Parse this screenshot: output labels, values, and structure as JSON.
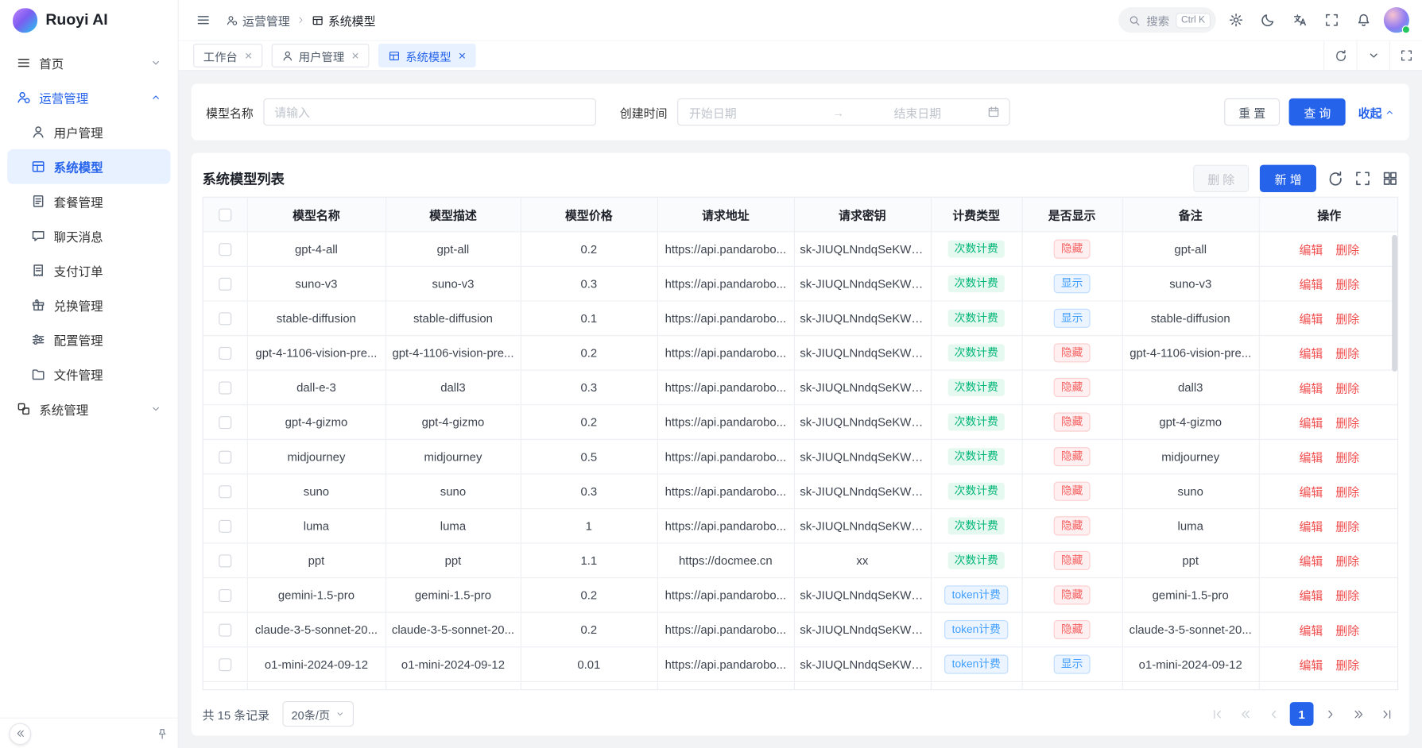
{
  "app": {
    "logo_text": "Ruoyi AI"
  },
  "colors": {
    "primary": "#2563eb",
    "count_billing": "#00b578",
    "token_billing": "#409eff",
    "hidden_badge": "#f56060",
    "shown_badge": "#409eff",
    "action_link": "#f04c4c"
  },
  "topbar": {
    "breadcrumb": [
      {
        "label": "运营管理",
        "icon": "operations"
      },
      {
        "label": "系统模型",
        "icon": "grid"
      }
    ],
    "search": {
      "placeholder": "搜索",
      "shortcut": "Ctrl K"
    }
  },
  "sidebar": {
    "home": {
      "label": "首页"
    },
    "operations": {
      "label": "运营管理"
    },
    "system": {
      "label": "系统管理"
    },
    "operations_children": [
      {
        "key": "users",
        "label": "用户管理",
        "icon": "user",
        "active": false
      },
      {
        "key": "models",
        "label": "系统模型",
        "icon": "grid",
        "active": true
      },
      {
        "key": "packages",
        "label": "套餐管理",
        "icon": "doc",
        "active": false
      },
      {
        "key": "chat-messages",
        "label": "聊天消息",
        "icon": "chat",
        "active": false
      },
      {
        "key": "payment-orders",
        "label": "支付订单",
        "icon": "receipt",
        "active": false
      },
      {
        "key": "redeem",
        "label": "兑换管理",
        "icon": "gift",
        "active": false
      },
      {
        "key": "config",
        "label": "配置管理",
        "icon": "config",
        "active": false
      },
      {
        "key": "files",
        "label": "文件管理",
        "icon": "folder",
        "active": false
      }
    ]
  },
  "tabs": [
    {
      "key": "workbench",
      "label": "工作台",
      "icon": "",
      "active": false
    },
    {
      "key": "users",
      "label": "用户管理",
      "icon": "user",
      "active": false
    },
    {
      "key": "models",
      "label": "系统模型",
      "icon": "grid",
      "active": true
    }
  ],
  "filter": {
    "model_name_label": "模型名称",
    "model_name_placeholder": "请输入",
    "create_time_label": "创建时间",
    "start_date_placeholder": "开始日期",
    "end_date_placeholder": "结束日期",
    "reset_label": "重 置",
    "query_label": "查 询",
    "collapse_label": "收起"
  },
  "panel": {
    "title": "系统模型列表",
    "delete_label": "删 除",
    "add_label": "新 增"
  },
  "table": {
    "columns": [
      "模型名称",
      "模型描述",
      "模型价格",
      "请求地址",
      "请求密钥",
      "计费类型",
      "是否显示",
      "备注",
      "操作"
    ],
    "edit_label": "编辑",
    "delete_label": "删除",
    "rows": [
      {
        "name": "gpt-4-all",
        "desc": "gpt-all",
        "price": "0.2",
        "url": "https://api.pandarobo...",
        "key": "sk-JIUQLNndqSeKWU...",
        "billing": "次数计费",
        "billing_type": "count",
        "visible": "隐藏",
        "visible_type": "hidden",
        "remark": "gpt-all"
      },
      {
        "name": "suno-v3",
        "desc": "suno-v3",
        "price": "0.3",
        "url": "https://api.pandarobo...",
        "key": "sk-JIUQLNndqSeKWU...",
        "billing": "次数计费",
        "billing_type": "count",
        "visible": "显示",
        "visible_type": "shown",
        "remark": "suno-v3"
      },
      {
        "name": "stable-diffusion",
        "desc": "stable-diffusion",
        "price": "0.1",
        "url": "https://api.pandarobo...",
        "key": "sk-JIUQLNndqSeKWU...",
        "billing": "次数计费",
        "billing_type": "count",
        "visible": "显示",
        "visible_type": "shown",
        "remark": "stable-diffusion"
      },
      {
        "name": "gpt-4-1106-vision-pre...",
        "desc": "gpt-4-1106-vision-pre...",
        "price": "0.2",
        "url": "https://api.pandarobo...",
        "key": "sk-JIUQLNndqSeKWU...",
        "billing": "次数计费",
        "billing_type": "count",
        "visible": "隐藏",
        "visible_type": "hidden",
        "remark": "gpt-4-1106-vision-pre..."
      },
      {
        "name": "dall-e-3",
        "desc": "dall3",
        "price": "0.3",
        "url": "https://api.pandarobo...",
        "key": "sk-JIUQLNndqSeKWU...",
        "billing": "次数计费",
        "billing_type": "count",
        "visible": "隐藏",
        "visible_type": "hidden",
        "remark": "dall3"
      },
      {
        "name": "gpt-4-gizmo",
        "desc": "gpt-4-gizmo",
        "price": "0.2",
        "url": "https://api.pandarobo...",
        "key": "sk-JIUQLNndqSeKWU...",
        "billing": "次数计费",
        "billing_type": "count",
        "visible": "隐藏",
        "visible_type": "hidden",
        "remark": "gpt-4-gizmo"
      },
      {
        "name": "midjourney",
        "desc": "midjourney",
        "price": "0.5",
        "url": "https://api.pandarobo...",
        "key": "sk-JIUQLNndqSeKWU...",
        "billing": "次数计费",
        "billing_type": "count",
        "visible": "隐藏",
        "visible_type": "hidden",
        "remark": "midjourney"
      },
      {
        "name": "suno",
        "desc": "suno",
        "price": "0.3",
        "url": "https://api.pandarobo...",
        "key": "sk-JIUQLNndqSeKWU...",
        "billing": "次数计费",
        "billing_type": "count",
        "visible": "隐藏",
        "visible_type": "hidden",
        "remark": "suno"
      },
      {
        "name": "luma",
        "desc": "luma",
        "price": "1",
        "url": "https://api.pandarobo...",
        "key": "sk-JIUQLNndqSeKWU...",
        "billing": "次数计费",
        "billing_type": "count",
        "visible": "隐藏",
        "visible_type": "hidden",
        "remark": "luma"
      },
      {
        "name": "ppt",
        "desc": "ppt",
        "price": "1.1",
        "url": "https://docmee.cn",
        "key": "xx",
        "billing": "次数计费",
        "billing_type": "count",
        "visible": "隐藏",
        "visible_type": "hidden",
        "remark": "ppt"
      },
      {
        "name": "gemini-1.5-pro",
        "desc": "gemini-1.5-pro",
        "price": "0.2",
        "url": "https://api.pandarobo...",
        "key": "sk-JIUQLNndqSeKWU...",
        "billing": "token计费",
        "billing_type": "token",
        "visible": "隐藏",
        "visible_type": "hidden",
        "remark": "gemini-1.5-pro"
      },
      {
        "name": "claude-3-5-sonnet-20...",
        "desc": "claude-3-5-sonnet-20...",
        "price": "0.2",
        "url": "https://api.pandarobo...",
        "key": "sk-JIUQLNndqSeKWU...",
        "billing": "token计费",
        "billing_type": "token",
        "visible": "隐藏",
        "visible_type": "hidden",
        "remark": "claude-3-5-sonnet-20..."
      },
      {
        "name": "o1-mini-2024-09-12",
        "desc": "o1-mini-2024-09-12",
        "price": "0.01",
        "url": "https://api.pandarobo...",
        "key": "sk-JIUQLNndqSeKWU...",
        "billing": "token计费",
        "billing_type": "token",
        "visible": "显示",
        "visible_type": "shown",
        "remark": "o1-mini-2024-09-12"
      }
    ]
  },
  "pagination": {
    "total": "共 15 条记录",
    "page_size": "20条/页",
    "page": "1"
  }
}
